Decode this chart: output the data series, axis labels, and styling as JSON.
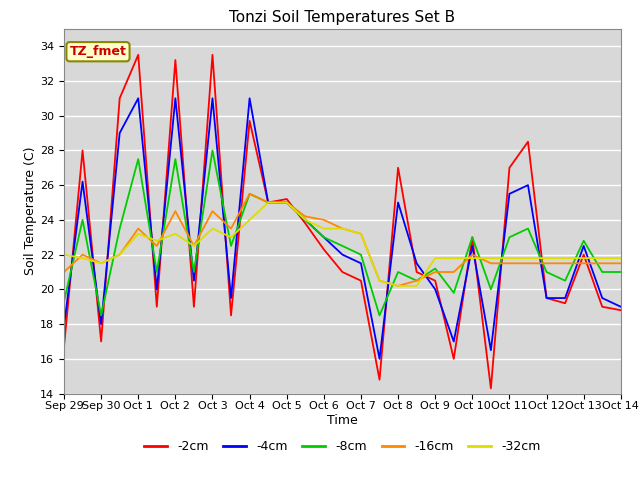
{
  "title": "Tonzi Soil Temperatures Set B",
  "xlabel": "Time",
  "ylabel": "Soil Temperature (C)",
  "ylim": [
    14,
    35
  ],
  "yticks": [
    14,
    16,
    18,
    20,
    22,
    24,
    26,
    28,
    30,
    32,
    34
  ],
  "annotation": "TZ_fmet",
  "x_labels": [
    "Sep 29",
    "Sep 30",
    "Oct 1",
    "Oct 2",
    "Oct 3",
    "Oct 4",
    "Oct 5",
    "Oct 6",
    "Oct 7",
    "Oct 8",
    "Oct 9",
    "Oct 10",
    "Oct 11",
    "Oct 12",
    "Oct 13",
    "Oct 14"
  ],
  "colors": {
    "-2cm": "#ff0000",
    "-4cm": "#0000ff",
    "-8cm": "#00cc00",
    "-16cm": "#ff8800",
    "-32cm": "#dddd00"
  },
  "red": [
    16.7,
    28.0,
    17.0,
    31.0,
    33.5,
    19.0,
    33.2,
    19.0,
    33.5,
    18.5,
    29.7,
    25.0,
    25.2,
    23.8,
    22.3,
    21.0,
    20.5,
    14.8,
    27.0,
    21.0,
    20.5,
    16.0,
    23.0,
    14.3,
    27.0,
    28.5,
    19.5,
    19.2,
    22.0,
    19.0,
    18.8
  ],
  "blue": [
    17.9,
    26.2,
    18.0,
    29.0,
    31.0,
    20.0,
    31.0,
    20.5,
    31.0,
    19.5,
    31.0,
    25.0,
    25.0,
    24.0,
    23.0,
    22.0,
    21.5,
    16.0,
    25.0,
    21.5,
    20.0,
    17.0,
    22.5,
    16.5,
    25.5,
    26.0,
    19.5,
    19.5,
    22.5,
    19.5,
    19.0
  ],
  "green": [
    19.3,
    24.0,
    18.5,
    23.5,
    27.5,
    21.0,
    27.5,
    21.0,
    28.0,
    22.5,
    25.5,
    25.0,
    25.0,
    24.0,
    23.0,
    22.5,
    22.0,
    18.5,
    21.0,
    20.5,
    21.2,
    19.8,
    23.0,
    20.0,
    23.0,
    23.5,
    21.0,
    20.5,
    22.8,
    21.0,
    21.0
  ],
  "orange": [
    21.0,
    22.0,
    21.5,
    22.0,
    23.5,
    22.5,
    24.5,
    22.5,
    24.5,
    23.5,
    25.5,
    25.0,
    25.0,
    24.2,
    24.0,
    23.5,
    23.2,
    20.5,
    20.2,
    20.5,
    21.0,
    21.0,
    22.0,
    21.5,
    21.5,
    21.5,
    21.5,
    21.5,
    21.5,
    21.5,
    21.5
  ],
  "yellow": [
    22.0,
    21.8,
    21.5,
    22.0,
    23.2,
    22.8,
    23.2,
    22.5,
    23.5,
    23.0,
    24.0,
    25.0,
    25.0,
    24.0,
    23.5,
    23.5,
    23.2,
    20.5,
    20.2,
    20.2,
    21.8,
    21.8,
    21.8,
    21.8,
    21.8,
    21.8,
    21.8,
    21.8,
    21.8,
    21.8,
    21.8
  ],
  "bg_color": "#d8d8d8",
  "grid_color": "#ffffff"
}
